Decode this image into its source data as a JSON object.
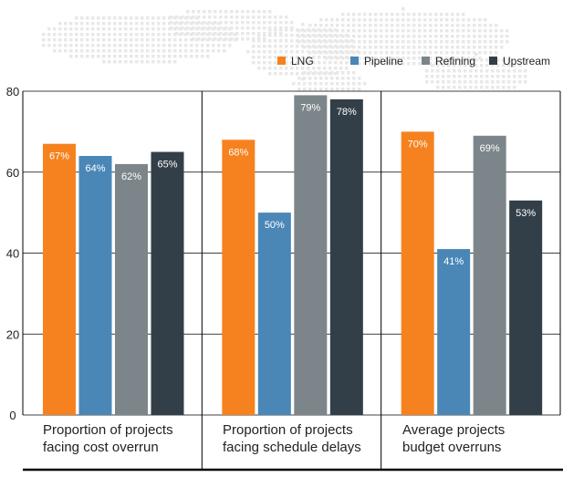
{
  "chart_data": {
    "type": "bar",
    "title": "",
    "xlabel": "",
    "ylabel": "",
    "ylim": [
      0,
      80
    ],
    "yticks": [
      "0",
      "20",
      "40",
      "60",
      "80"
    ],
    "grid": true,
    "legend_position": "top-right",
    "categories": [
      [
        "Proportion of projects",
        "facing cost overrun"
      ],
      [
        "Proportion of projects",
        "facing schedule delays"
      ],
      [
        "Average projects",
        "budget overruns"
      ]
    ],
    "series": [
      {
        "name": "LNG",
        "color": "#f5821f",
        "values": [
          67,
          68,
          70
        ],
        "labels": [
          "67%",
          "68%",
          "70%"
        ]
      },
      {
        "name": "Pipeline",
        "color": "#4a87b7",
        "values": [
          64,
          50,
          41
        ],
        "labels": [
          "64%",
          "50%",
          "41%"
        ]
      },
      {
        "name": "Refining",
        "color": "#7c858a",
        "values": [
          62,
          79,
          69
        ],
        "labels": [
          "62%",
          "79%",
          "69%"
        ]
      },
      {
        "name": "Upstream",
        "color": "#323f48",
        "values": [
          65,
          78,
          53
        ],
        "labels": [
          "65%",
          "78%",
          "53%"
        ]
      }
    ]
  }
}
